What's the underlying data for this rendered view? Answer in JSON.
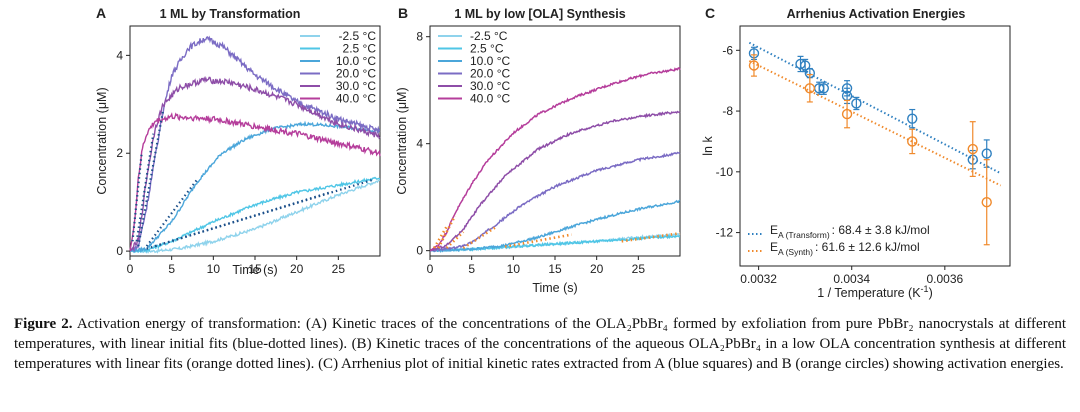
{
  "panels": {
    "a": {
      "letter": "A",
      "title": "1 ML by Transformation",
      "xlabel": "Time (s)",
      "ylabel": "Concentration (μM)",
      "xticks": [
        "0",
        "5",
        "10",
        "15",
        "20",
        "25"
      ],
      "yticks": [
        "0",
        "2",
        "4"
      ],
      "legend": [
        "-2.5 °C",
        "2.5 °C",
        "10.0 °C",
        "20.0 °C",
        "30.0 °C",
        "40.0 °C"
      ]
    },
    "b": {
      "letter": "B",
      "title": "1 ML by low [OLA] Synthesis",
      "xlabel": "Time (s)",
      "ylabel": "Concentration (μM)",
      "xticks": [
        "0",
        "5",
        "10",
        "15",
        "20",
        "25"
      ],
      "yticks": [
        "0",
        "4",
        "8"
      ],
      "legend": [
        "-2.5 °C",
        "2.5 °C",
        "10.0 °C",
        "20.0 °C",
        "30.0 °C",
        "40.0 °C"
      ]
    },
    "c": {
      "letter": "C",
      "title": "Arrhenius Activation Energies",
      "xlabel_main": "1 / Temperature (K",
      "xlabel_sup": "-1",
      "xlabel_end": ")",
      "ylabel": "ln k",
      "xticks": [
        "0.0032",
        "0.0034",
        "0.0036"
      ],
      "yticks": [
        "-6",
        "-8",
        "-10",
        "-12"
      ],
      "legend": [
        {
          "sym": "E",
          "sub": "A (Transform)",
          "value": ": 68.4 ± 3.8 kJ/mol"
        },
        {
          "sym": "E",
          "sub": "A (Synth)",
          "value": ": 61.6 ± 12.6 kJ/mol"
        }
      ]
    }
  },
  "colors": {
    "series": [
      "#8fd3ec",
      "#4fc6e6",
      "#4ba6da",
      "#7b6cc4",
      "#8e4ea8",
      "#b53d9b"
    ],
    "transform": "#2f80c0",
    "synth": "#f08a2c"
  },
  "chart_data": [
    {
      "type": "line",
      "title": "1 ML by Transformation",
      "xlabel": "Time (s)",
      "ylabel": "Concentration (μM)",
      "xlim": [
        0,
        30
      ],
      "ylim": [
        -0.1,
        4.6
      ],
      "series": [
        {
          "name": "-2.5 °C",
          "points": [
            [
              0,
              0
            ],
            [
              3,
              0
            ],
            [
              6,
              0.05
            ],
            [
              10,
              0.2
            ],
            [
              15,
              0.45
            ],
            [
              20,
              0.8
            ],
            [
              25,
              1.15
            ],
            [
              30,
              1.45
            ]
          ]
        },
        {
          "name": "2.5 °C",
          "points": [
            [
              0,
              0
            ],
            [
              2,
              0.02
            ],
            [
              5,
              0.2
            ],
            [
              10,
              0.6
            ],
            [
              15,
              0.95
            ],
            [
              20,
              1.2
            ],
            [
              25,
              1.35
            ],
            [
              30,
              1.5
            ]
          ]
        },
        {
          "name": "10.0 °C",
          "points": [
            [
              0,
              0
            ],
            [
              2,
              0.05
            ],
            [
              5,
              0.6
            ],
            [
              8,
              1.4
            ],
            [
              11,
              2.0
            ],
            [
              14,
              2.3
            ],
            [
              17,
              2.5
            ],
            [
              21,
              2.6
            ],
            [
              25,
              2.55
            ],
            [
              30,
              2.45
            ]
          ]
        },
        {
          "name": "20.0 °C",
          "points": [
            [
              0,
              0
            ],
            [
              1,
              0.1
            ],
            [
              2,
              0.9
            ],
            [
              3,
              1.9
            ],
            [
              4,
              2.9
            ],
            [
              5,
              3.6
            ],
            [
              7,
              4.15
            ],
            [
              9,
              4.35
            ],
            [
              11,
              4.2
            ],
            [
              15,
              3.6
            ],
            [
              20,
              3.05
            ],
            [
              25,
              2.7
            ],
            [
              30,
              2.45
            ]
          ]
        },
        {
          "name": "30.0 °C",
          "points": [
            [
              0,
              0
            ],
            [
              1,
              0.2
            ],
            [
              2,
              1.5
            ],
            [
              3,
              2.5
            ],
            [
              4,
              3.0
            ],
            [
              6,
              3.35
            ],
            [
              9,
              3.5
            ],
            [
              12,
              3.45
            ],
            [
              16,
              3.25
            ],
            [
              20,
              3.0
            ],
            [
              25,
              2.6
            ],
            [
              30,
              2.35
            ]
          ]
        },
        {
          "name": "40.0 °C",
          "points": [
            [
              0,
              0
            ],
            [
              0.5,
              0.5
            ],
            [
              1,
              1.5
            ],
            [
              1.5,
              2.1
            ],
            [
              2,
              2.4
            ],
            [
              3,
              2.65
            ],
            [
              5,
              2.75
            ],
            [
              10,
              2.7
            ],
            [
              15,
              2.55
            ],
            [
              20,
              2.4
            ],
            [
              25,
              2.2
            ],
            [
              30,
              2.0
            ]
          ]
        }
      ]
    },
    {
      "type": "line",
      "title": "1 ML by low [OLA] Synthesis",
      "xlabel": "Time (s)",
      "ylabel": "Concentration (μM)",
      "xlim": [
        0,
        30
      ],
      "ylim": [
        -0.2,
        8.4
      ],
      "series": [
        {
          "name": "-2.5 °C",
          "points": [
            [
              0,
              0
            ],
            [
              5,
              0.05
            ],
            [
              10,
              0.15
            ],
            [
              15,
              0.25
            ],
            [
              20,
              0.35
            ],
            [
              25,
              0.5
            ],
            [
              30,
              0.6
            ]
          ]
        },
        {
          "name": "2.5 °C",
          "points": [
            [
              0,
              0
            ],
            [
              5,
              0.05
            ],
            [
              10,
              0.15
            ],
            [
              15,
              0.25
            ],
            [
              20,
              0.35
            ],
            [
              25,
              0.45
            ],
            [
              30,
              0.55
            ]
          ]
        },
        {
          "name": "10.0 °C",
          "points": [
            [
              0,
              0
            ],
            [
              5,
              0.05
            ],
            [
              9,
              0.2
            ],
            [
              13,
              0.5
            ],
            [
              17,
              0.9
            ],
            [
              21,
              1.25
            ],
            [
              25,
              1.55
            ],
            [
              30,
              1.85
            ]
          ]
        },
        {
          "name": "20.0 °C",
          "points": [
            [
              0,
              0
            ],
            [
              3,
              0.1
            ],
            [
              5,
              0.3
            ],
            [
              8,
              1.0
            ],
            [
              11,
              1.7
            ],
            [
              15,
              2.4
            ],
            [
              20,
              3.0
            ],
            [
              25,
              3.4
            ],
            [
              30,
              3.65
            ]
          ]
        },
        {
          "name": "30.0 °C",
          "points": [
            [
              0,
              0
            ],
            [
              2,
              0.2
            ],
            [
              4,
              0.8
            ],
            [
              6,
              1.7
            ],
            [
              9,
              2.8
            ],
            [
              13,
              3.8
            ],
            [
              17,
              4.4
            ],
            [
              22,
              4.85
            ],
            [
              26,
              5.05
            ],
            [
              30,
              5.2
            ]
          ]
        },
        {
          "name": "40.0 °C",
          "points": [
            [
              0,
              0
            ],
            [
              1,
              0.2
            ],
            [
              2,
              0.7
            ],
            [
              3,
              1.4
            ],
            [
              5,
              2.5
            ],
            [
              7,
              3.4
            ],
            [
              10,
              4.4
            ],
            [
              13,
              5.1
            ],
            [
              17,
              5.7
            ],
            [
              22,
              6.25
            ],
            [
              26,
              6.6
            ],
            [
              30,
              6.8
            ]
          ]
        }
      ]
    },
    {
      "type": "scatter",
      "title": "Arrhenius Activation Energies",
      "xlabel": "1 / Temperature (K-1)",
      "ylabel": "ln k",
      "xlim": [
        0.00316,
        0.00374
      ],
      "ylim": [
        -13.1,
        -5.2
      ],
      "series": [
        {
          "name": "E A (Transform) : 68.4 ± 3.8 kJ/mol",
          "points": [
            [
              0.00319,
              -6.1,
              0.2
            ],
            [
              0.00329,
              -6.45,
              0.25
            ],
            [
              0.0033,
              -6.5,
              0.2
            ],
            [
              0.00331,
              -6.75,
              0.15
            ],
            [
              0.00333,
              -7.25,
              0.2
            ],
            [
              0.00334,
              -7.25,
              0.2
            ],
            [
              0.00339,
              -7.25,
              0.25
            ],
            [
              0.00339,
              -7.5,
              0.25
            ],
            [
              0.00341,
              -7.75,
              0.2
            ],
            [
              0.00353,
              -8.25,
              0.3
            ],
            [
              0.00366,
              -9.6,
              0.3
            ],
            [
              0.00369,
              -9.4,
              0.45
            ]
          ],
          "fit": [
            [
              0.00318,
              -5.75
            ],
            [
              0.00372,
              -10.05
            ]
          ]
        },
        {
          "name": "E A (Synth) : 61.6 ± 12.6 kJ/mol",
          "points": [
            [
              0.00319,
              -6.5,
              0.35
            ],
            [
              0.00331,
              -7.25,
              0.45
            ],
            [
              0.00339,
              -8.1,
              0.45
            ],
            [
              0.00353,
              -9.0,
              0.4
            ],
            [
              0.00366,
              -9.25,
              0.9
            ],
            [
              0.00369,
              -11.0,
              1.4
            ]
          ],
          "fit": [
            [
              0.00318,
              -6.35
            ],
            [
              0.00372,
              -10.45
            ]
          ]
        }
      ]
    }
  ],
  "caption": {
    "lead": "Figure 2.",
    "text": " Activation energy of transformation: (A) Kinetic traces of the concentrations of the OLA₂PbBr₄ formed by exfoliation from pure PbBr₂ nanocrystals at different temperatures, with linear initial fits (blue-dotted lines). (B) Kinetic traces of the concentrations of the aqueous OLA₂PbBr₄ in a low OLA concentration synthesis at different temperatures with linear fits (orange dotted lines). (C) Arrhenius plot of initial kinetic rates extracted from A (blue squares) and B (orange circles) showing activation energies."
  }
}
